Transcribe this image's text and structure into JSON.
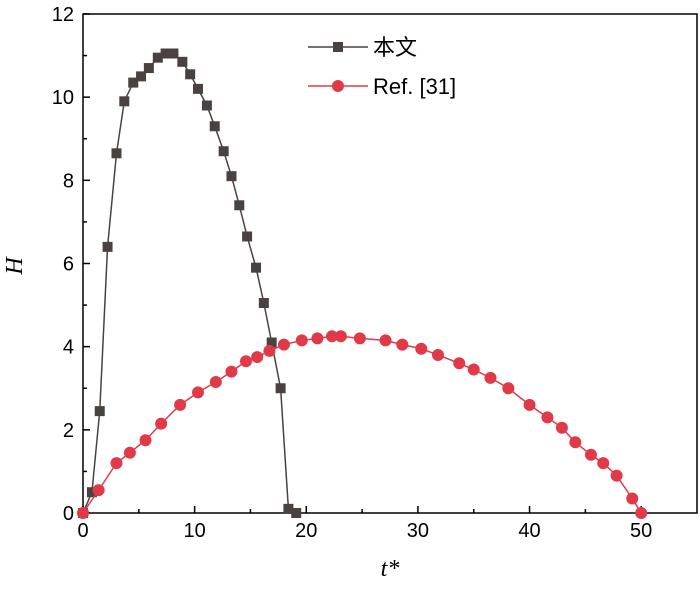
{
  "chart_data": {
    "type": "line",
    "xlabel": "t*",
    "ylabel": "H",
    "xlim": [
      0,
      55
    ],
    "ylim": [
      0,
      12
    ],
    "xticks": [
      0,
      10,
      20,
      30,
      40,
      50
    ],
    "yticks": [
      0,
      2,
      4,
      6,
      8,
      10,
      12
    ],
    "legend_position": "top-right",
    "grid": false,
    "series": [
      {
        "name": "本文",
        "color": "#4a4240",
        "marker": "square",
        "x": [
          0,
          0.8,
          1.5,
          2.2,
          3.0,
          3.7,
          4.5,
          5.2,
          5.9,
          6.7,
          7.4,
          8.1,
          8.9,
          9.6,
          10.3,
          11.1,
          11.8,
          12.6,
          13.3,
          14.0,
          14.7,
          15.5,
          16.2,
          16.9,
          17.7,
          18.4,
          19.1
        ],
        "y": [
          0,
          0.5,
          2.45,
          6.4,
          8.65,
          9.9,
          10.35,
          10.5,
          10.7,
          10.95,
          11.05,
          11.05,
          10.85,
          10.55,
          10.2,
          9.8,
          9.3,
          8.7,
          8.1,
          7.4,
          6.65,
          5.9,
          5.05,
          4.1,
          3.0,
          0.1,
          0
        ]
      },
      {
        "name": "Ref. [31]",
        "color": "#e03a48",
        "marker": "circle",
        "x": [
          0,
          1.4,
          3.0,
          4.2,
          5.6,
          7.0,
          8.7,
          10.3,
          11.9,
          13.3,
          14.6,
          15.6,
          16.7,
          18.0,
          19.6,
          21.0,
          22.3,
          23.1,
          24.8,
          27.1,
          28.6,
          30.3,
          31.8,
          33.7,
          35.0,
          36.5,
          38.1,
          40.0,
          41.6,
          42.9,
          44.1,
          45.5,
          46.6,
          47.8,
          49.2,
          50.0
        ],
        "y": [
          0,
          0.55,
          1.2,
          1.45,
          1.75,
          2.15,
          2.6,
          2.9,
          3.15,
          3.4,
          3.65,
          3.75,
          3.9,
          4.05,
          4.15,
          4.2,
          4.25,
          4.25,
          4.2,
          4.15,
          4.05,
          3.95,
          3.8,
          3.6,
          3.45,
          3.25,
          3.0,
          2.6,
          2.3,
          2.05,
          1.7,
          1.4,
          1.2,
          0.9,
          0.35,
          0
        ]
      }
    ]
  }
}
